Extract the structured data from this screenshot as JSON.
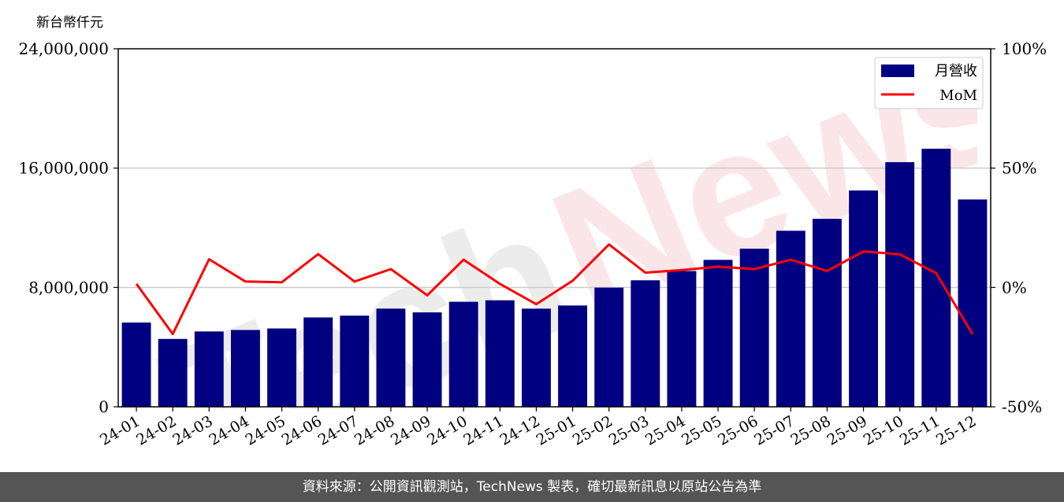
{
  "chart_data": {
    "type": "bar",
    "unit_label": "新台幣仟元",
    "categories": [
      "24-01",
      "24-02",
      "24-03",
      "24-04",
      "24-05",
      "24-06",
      "24-07",
      "24-08",
      "24-09",
      "24-10",
      "24-11",
      "24-12",
      "25-01",
      "25-02",
      "25-03",
      "25-04",
      "25-05",
      "25-06",
      "25-07",
      "25-08",
      "25-09",
      "25-10",
      "25-11",
      "25-12"
    ],
    "series": [
      {
        "name": "月營收",
        "type": "bar",
        "axis": "left",
        "color": "#000080",
        "values": [
          5650000,
          4550000,
          5050000,
          5150000,
          5250000,
          5990000,
          6110000,
          6580000,
          6330000,
          7040000,
          7140000,
          6580000,
          6790000,
          7990000,
          8480000,
          9100000,
          9850000,
          10600000,
          11800000,
          12600000,
          14500000,
          16400000,
          17300000,
          13900000
        ]
      },
      {
        "name": "MoM",
        "type": "line",
        "axis": "right",
        "color": "#ff0000",
        "values": [
          1.5,
          -19.5,
          11.8,
          2.5,
          2.2,
          14.0,
          2.5,
          7.7,
          -3.3,
          11.6,
          1.5,
          -7.0,
          2.8,
          18.0,
          6.2,
          7.3,
          8.7,
          7.7,
          11.6,
          6.9,
          15.1,
          13.9,
          6.0,
          -19.5
        ]
      }
    ],
    "ylim_left": [
      0,
      24000000
    ],
    "yticks_left": [
      "0",
      "8,000,000",
      "16,000,000",
      "24,000,000"
    ],
    "ylim_right": [
      -50,
      100
    ],
    "yticks_right": [
      "-50%",
      "0%",
      "50%",
      "100%"
    ],
    "grid": "horizontal",
    "legend": "top-right",
    "watermark": "TechNews"
  },
  "footer": "資料來源：公開資訊觀測站，TechNews 製表，確切最新訊息以原站公告為準"
}
